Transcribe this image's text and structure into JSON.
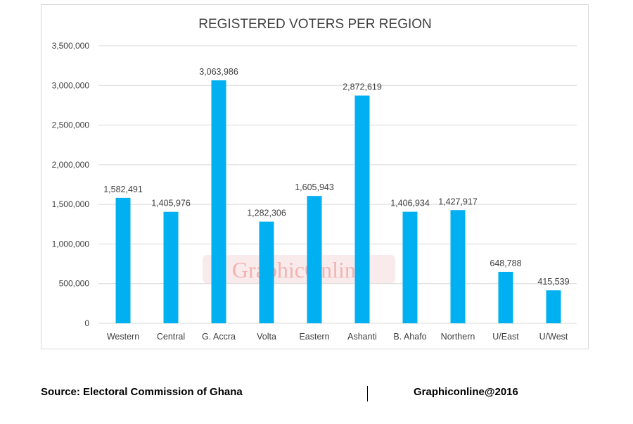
{
  "chart_data": {
    "type": "bar",
    "title": "REGISTERED VOTERS PER REGION",
    "xlabel": "",
    "ylabel": "",
    "categories": [
      "Western",
      "Central",
      "G. Accra",
      "Volta",
      "Eastern",
      "Ashanti",
      "B. Ahafo",
      "Northern",
      "U/East",
      "U/West"
    ],
    "values": [
      1582491,
      1405976,
      3063986,
      1282306,
      1605943,
      2872619,
      1406934,
      1427917,
      648788,
      415539
    ],
    "data_labels": [
      "1,582,491",
      "1,405,976",
      "3,063,986",
      "1,282,306",
      "1,605,943",
      "2,872,619",
      "1,406,934",
      "1,427,917",
      "648,788",
      "415,539"
    ],
    "ylim": [
      0,
      3500000
    ],
    "yticks": [
      0,
      500000,
      1000000,
      1500000,
      2000000,
      2500000,
      3000000,
      3500000
    ],
    "ytick_labels": [
      "0",
      "500,000",
      "1,000,000",
      "1,500,000",
      "2,000,000",
      "2,500,000",
      "3,000,000",
      "3,500,000"
    ],
    "grid": true,
    "legend": "none",
    "bar_color": "#00b0f0",
    "watermark": "GraphicOnline"
  },
  "footer": {
    "source": "Source: Electoral Commission of Ghana",
    "credit": "Graphiconline@2016"
  }
}
